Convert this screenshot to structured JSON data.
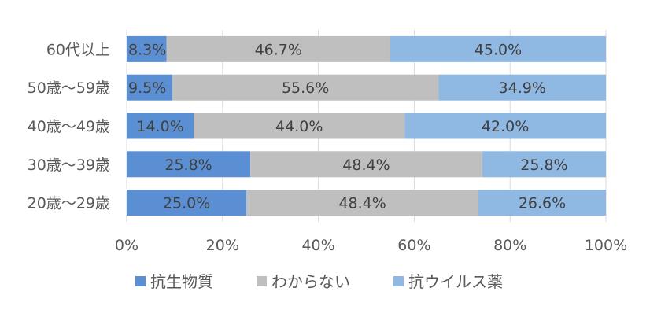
{
  "chart_data": {
    "type": "bar",
    "orientation": "horizontal",
    "stacked": "percent",
    "categories": [
      "60代以上",
      "50歳～59歳",
      "40歳～49歳",
      "30歳～39歳",
      "20歳～29歳"
    ],
    "series": [
      {
        "name": "抗生物質",
        "color": "#5b8fd3",
        "values": [
          8.3,
          9.5,
          14.0,
          25.8,
          25.0
        ],
        "labels": [
          "8.3%",
          "9.5%",
          "14.0%",
          "25.8%",
          "25.0%"
        ]
      },
      {
        "name": "わからない",
        "color": "#bfbfbf",
        "values": [
          46.7,
          55.6,
          44.0,
          48.4,
          48.4
        ],
        "labels": [
          "46.7%",
          "55.6%",
          "44.0%",
          "48.4%",
          "48.4%"
        ]
      },
      {
        "name": "抗ウイルス薬",
        "color": "#8fb8e2",
        "values": [
          45.0,
          34.9,
          42.0,
          25.8,
          26.6
        ],
        "labels": [
          "45.0%",
          "34.9%",
          "42.0%",
          "25.8%",
          "26.6%"
        ]
      }
    ],
    "xlim": [
      0,
      100
    ],
    "xticks": [
      0,
      20,
      40,
      60,
      80,
      100
    ],
    "xtick_labels": [
      "0%",
      "20%",
      "40%",
      "60%",
      "80%",
      "100%"
    ],
    "grid": true,
    "legend": "bottom"
  }
}
